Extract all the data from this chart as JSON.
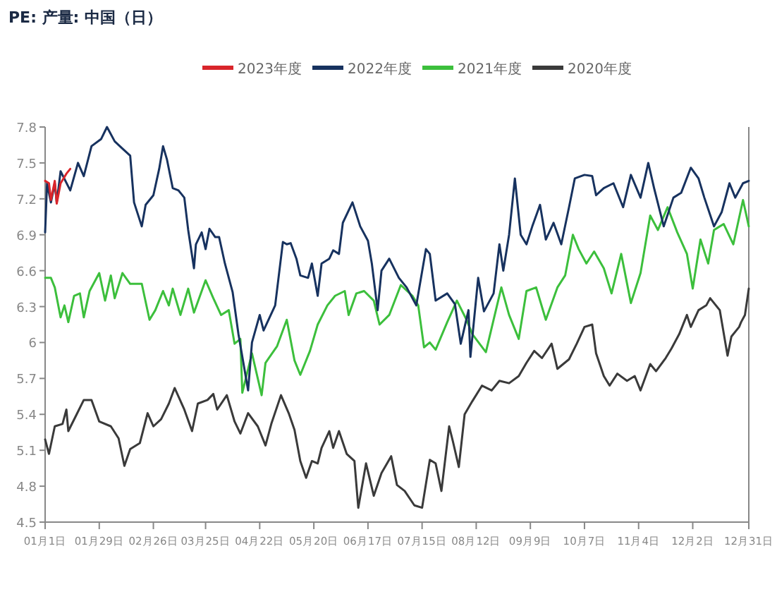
{
  "chart_data": {
    "type": "line",
    "title": "PE: 产量: 中国（日）",
    "legend": "top",
    "xlim": [
      "--01-01",
      "--12-31"
    ],
    "ylim": [
      4.5,
      7.8
    ],
    "xticks": [
      {
        "value": "--01-01",
        "label": "01月1日"
      },
      {
        "value": "--01-29",
        "label": "01月29日"
      },
      {
        "value": "--02-26",
        "label": "02月26日"
      },
      {
        "value": "--03-25",
        "label": "03月25日"
      },
      {
        "value": "--04-22",
        "label": "04月22日"
      },
      {
        "value": "--05-20",
        "label": "05月20日"
      },
      {
        "value": "--06-17",
        "label": "06月17日"
      },
      {
        "value": "--07-15",
        "label": "07月15日"
      },
      {
        "value": "--08-12",
        "label": "08月12日"
      },
      {
        "value": "--09-09",
        "label": "09月9日"
      },
      {
        "value": "--10-07",
        "label": "10月7日"
      },
      {
        "value": "--11-04",
        "label": "11月4日"
      },
      {
        "value": "--12-02",
        "label": "12月2日"
      },
      {
        "value": "--12-31",
        "label": "12月31日"
      }
    ],
    "yticks": [
      4.5,
      4.8,
      5.1,
      5.4,
      5.7,
      6,
      6.3,
      6.6,
      6.9,
      7.2,
      7.5,
      7.8
    ],
    "series": [
      {
        "name": "2023年度",
        "color": "#d9252b",
        "x": [
          "--01-01",
          "--01-03",
          "--01-04",
          "--01-06",
          "--01-07",
          "--01-09",
          "--01-12",
          "--01-14"
        ],
        "values": [
          7.35,
          7.33,
          7.19,
          7.35,
          7.16,
          7.33,
          7.41,
          7.45
        ]
      },
      {
        "name": "2022年度",
        "color": "#17325f",
        "x": [
          "--01-01",
          "--01-02",
          "--01-04",
          "--01-06",
          "--01-07",
          "--01-09",
          "--01-14",
          "--01-18",
          "--01-21",
          "--01-25",
          "--01-30",
          "--02-02",
          "--02-06",
          "--02-10",
          "--02-14",
          "--02-16",
          "--02-20",
          "--02-22",
          "--02-26",
          "--03-01",
          "--03-03",
          "--03-05",
          "--03-08",
          "--03-11",
          "--03-14",
          "--03-16",
          "--03-19",
          "--03-20",
          "--03-23",
          "--03-25",
          "--03-27",
          "--03-30",
          "--04-01",
          "--04-04",
          "--04-08",
          "--04-11",
          "--04-16",
          "--04-18",
          "--04-22",
          "--04-24",
          "--04-30",
          "--05-04",
          "--05-06",
          "--05-08",
          "--05-11",
          "--05-13",
          "--05-17",
          "--05-19",
          "--05-22",
          "--05-24",
          "--05-28",
          "--05-30",
          "--06-02",
          "--06-04",
          "--06-09",
          "--06-13",
          "--06-17",
          "--06-19",
          "--06-22",
          "--06-24",
          "--06-28",
          "--07-03",
          "--07-07",
          "--07-12",
          "--07-17",
          "--07-19",
          "--07-22",
          "--07-28",
          "--08-01",
          "--08-04",
          "--08-08",
          "--08-09",
          "--08-13",
          "--08-16",
          "--08-21",
          "--08-24",
          "--08-26",
          "--08-29",
          "--09-01",
          "--09-04",
          "--09-07",
          "--09-10",
          "--09-14",
          "--09-17",
          "--09-21",
          "--09-25",
          "--09-29",
          "--10-02",
          "--10-07",
          "--10-11",
          "--10-13",
          "--10-17",
          "--10-22",
          "--10-27",
          "--10-31",
          "--11-05",
          "--11-09",
          "--11-12",
          "--11-17",
          "--11-22",
          "--11-26",
          "--12-01",
          "--12-05",
          "--12-08",
          "--12-13",
          "--12-17",
          "--12-21",
          "--12-24",
          "--12-28",
          "--12-31"
        ],
        "values": [
          6.92,
          7.33,
          7.17,
          7.33,
          7.17,
          7.43,
          7.27,
          7.5,
          7.39,
          7.64,
          7.7,
          7.8,
          7.68,
          7.62,
          7.56,
          7.17,
          6.97,
          7.15,
          7.23,
          7.45,
          7.64,
          7.53,
          7.29,
          7.27,
          7.21,
          6.94,
          6.62,
          6.82,
          6.92,
          6.78,
          6.95,
          6.88,
          6.88,
          6.66,
          6.42,
          6.07,
          5.6,
          6,
          6.23,
          6.1,
          6.31,
          6.84,
          6.82,
          6.83,
          6.7,
          6.56,
          6.54,
          6.66,
          6.39,
          6.66,
          6.7,
          6.77,
          6.74,
          7,
          7.17,
          6.97,
          6.85,
          6.66,
          6.27,
          6.6,
          6.7,
          6.54,
          6.46,
          6.31,
          6.78,
          6.74,
          6.35,
          6.41,
          6.32,
          5.99,
          6.27,
          5.88,
          6.54,
          6.26,
          6.41,
          6.82,
          6.6,
          6.9,
          7.37,
          6.9,
          6.82,
          6.97,
          7.15,
          6.86,
          7,
          6.82,
          7.13,
          7.37,
          7.4,
          7.39,
          7.23,
          7.29,
          7.33,
          7.13,
          7.4,
          7.21,
          7.5,
          7.29,
          6.97,
          7.21,
          7.25,
          7.46,
          7.37,
          7.21,
          6.97,
          7.09,
          7.33,
          7.21,
          7.33,
          7.35
        ]
      },
      {
        "name": "2021年度",
        "color": "#3cbf3c",
        "x": [
          "--01-01",
          "--01-04",
          "--01-06",
          "--01-09",
          "--01-11",
          "--01-13",
          "--01-16",
          "--01-19",
          "--01-21",
          "--01-24",
          "--01-29",
          "--02-01",
          "--02-04",
          "--02-06",
          "--02-10",
          "--02-14",
          "--02-20",
          "--02-24",
          "--02-27",
          "--03-03",
          "--03-06",
          "--03-08",
          "--03-12",
          "--03-16",
          "--03-19",
          "--03-25",
          "--03-29",
          "--04-02",
          "--04-06",
          "--04-09",
          "--04-12",
          "--04-13",
          "--04-18",
          "--04-23",
          "--04-25",
          "--05-01",
          "--05-06",
          "--05-10",
          "--05-13",
          "--05-18",
          "--05-22",
          "--05-27",
          "--05-31",
          "--06-05",
          "--06-07",
          "--06-11",
          "--06-15",
          "--06-20",
          "--06-23",
          "--06-28",
          "--07-04",
          "--07-10",
          "--07-13",
          "--07-16",
          "--07-19",
          "--07-22",
          "--07-28",
          "--08-02",
          "--08-07",
          "--08-10",
          "--08-17",
          "--08-21",
          "--08-25",
          "--08-29",
          "--09-03",
          "--09-07",
          "--09-12",
          "--09-17",
          "--09-23",
          "--09-27",
          "--10-01",
          "--10-04",
          "--10-08",
          "--10-12",
          "--10-17",
          "--10-21",
          "--10-26",
          "--10-31",
          "--11-05",
          "--11-10",
          "--11-14",
          "--11-19",
          "--11-24",
          "--11-29",
          "--12-02",
          "--12-06",
          "--12-10",
          "--12-13",
          "--12-18",
          "--12-23",
          "--12-28",
          "--12-31"
        ],
        "values": [
          6.54,
          6.54,
          6.46,
          6.21,
          6.31,
          6.17,
          6.39,
          6.41,
          6.21,
          6.43,
          6.58,
          6.35,
          6.56,
          6.37,
          6.58,
          6.49,
          6.49,
          6.19,
          6.27,
          6.43,
          6.31,
          6.45,
          6.23,
          6.45,
          6.25,
          6.52,
          6.37,
          6.23,
          6.27,
          5.99,
          6.03,
          5.58,
          5.91,
          5.56,
          5.83,
          5.97,
          6.19,
          5.85,
          5.73,
          5.93,
          6.15,
          6.31,
          6.39,
          6.43,
          6.23,
          6.41,
          6.43,
          6.35,
          6.15,
          6.23,
          6.48,
          6.39,
          6.31,
          5.96,
          6,
          5.94,
          6.17,
          6.35,
          6.19,
          6.07,
          5.92,
          6.19,
          6.46,
          6.23,
          6.03,
          6.43,
          6.46,
          6.19,
          6.46,
          6.56,
          6.9,
          6.78,
          6.66,
          6.76,
          6.62,
          6.41,
          6.74,
          6.33,
          6.58,
          7.06,
          6.94,
          7.13,
          6.92,
          6.74,
          6.45,
          6.86,
          6.66,
          6.94,
          6.99,
          6.82,
          7.19,
          6.97
        ]
      },
      {
        "name": "2020年度",
        "color": "#3a3a3a",
        "x": [
          "--01-01",
          "--01-03",
          "--01-06",
          "--01-10",
          "--01-12",
          "--01-13",
          "--01-17",
          "--01-21",
          "--01-25",
          "--01-29",
          "--02-04",
          "--02-08",
          "--02-11",
          "--02-14",
          "--02-19",
          "--02-23",
          "--02-26",
          "--03-02",
          "--03-06",
          "--03-09",
          "--03-14",
          "--03-18",
          "--03-21",
          "--03-26",
          "--03-29",
          "--03-31",
          "--04-05",
          "--04-09",
          "--04-12",
          "--04-16",
          "--04-21",
          "--04-25",
          "--04-28",
          "--05-03",
          "--05-07",
          "--05-10",
          "--05-13",
          "--05-16",
          "--05-19",
          "--05-22",
          "--05-24",
          "--05-28",
          "--05-30",
          "--06-02",
          "--06-06",
          "--06-10",
          "--06-12",
          "--06-16",
          "--06-20",
          "--06-24",
          "--06-29",
          "--07-02",
          "--07-06",
          "--07-11",
          "--07-15",
          "--07-19",
          "--07-22",
          "--07-25",
          "--07-29",
          "--07-31",
          "--08-03",
          "--08-06",
          "--08-10",
          "--08-15",
          "--08-20",
          "--08-24",
          "--08-29",
          "--09-03",
          "--09-07",
          "--09-11",
          "--09-15",
          "--09-20",
          "--09-23",
          "--09-29",
          "--10-03",
          "--10-07",
          "--10-11",
          "--10-13",
          "--10-17",
          "--10-20",
          "--10-24",
          "--10-29",
          "--11-02",
          "--11-05",
          "--11-10",
          "--11-13",
          "--11-18",
          "--11-21",
          "--11-25",
          "--11-29",
          "--12-01",
          "--12-05",
          "--12-09",
          "--12-11",
          "--12-16",
          "--12-20",
          "--12-22",
          "--12-26",
          "--12-27",
          "--12-29",
          "--12-31"
        ],
        "values": [
          5.19,
          5.07,
          5.3,
          5.32,
          5.44,
          5.26,
          5.39,
          5.52,
          5.52,
          5.34,
          5.3,
          5.2,
          4.97,
          5.11,
          5.16,
          5.41,
          5.3,
          5.36,
          5.49,
          5.62,
          5.44,
          5.26,
          5.49,
          5.52,
          5.57,
          5.44,
          5.56,
          5.34,
          5.24,
          5.41,
          5.3,
          5.14,
          5.32,
          5.56,
          5.41,
          5.27,
          5.01,
          4.87,
          5.01,
          4.99,
          5.12,
          5.26,
          5.12,
          5.26,
          5.07,
          5.01,
          4.62,
          4.99,
          4.72,
          4.91,
          5.05,
          4.81,
          4.76,
          4.64,
          4.62,
          5.02,
          4.99,
          4.76,
          5.3,
          5.17,
          4.96,
          5.4,
          5.51,
          5.64,
          5.6,
          5.68,
          5.66,
          5.72,
          5.83,
          5.93,
          5.87,
          5.99,
          5.78,
          5.86,
          5.99,
          6.13,
          6.15,
          5.91,
          5.72,
          5.64,
          5.74,
          5.68,
          5.72,
          5.6,
          5.82,
          5.76,
          5.87,
          5.95,
          6.07,
          6.23,
          6.13,
          6.27,
          6.31,
          6.37,
          6.27,
          5.89,
          6.05,
          6.13,
          6.17,
          6.23,
          6.45
        ]
      }
    ]
  }
}
